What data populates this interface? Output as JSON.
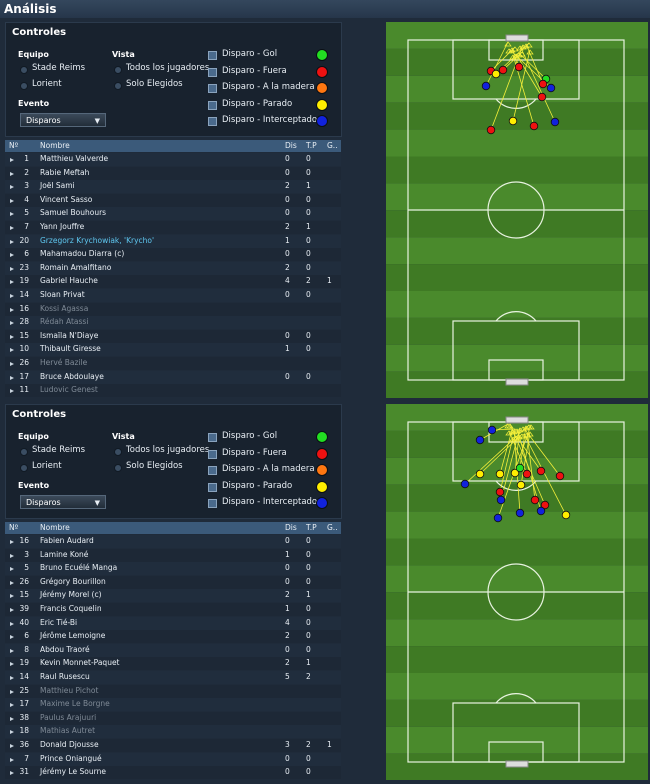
{
  "header": {
    "title": "Análisis"
  },
  "panels": [
    {
      "controls": {
        "title": "Controles",
        "team_label": "Equipo",
        "teams": [
          "Stade Reims",
          "Lorient"
        ],
        "view_label": "Vista",
        "views": [
          "Todos los jugadores",
          "Solo Elegidos"
        ],
        "event_label": "Evento",
        "event": "Disparos",
        "legend": [
          {
            "label": "Disparo - Gol",
            "color": "#22dd22"
          },
          {
            "label": "Disparo - Fuera",
            "color": "#ee1111"
          },
          {
            "label": "Disparo - A la madera",
            "color": "#ff7711"
          },
          {
            "label": "Disparo - Parado",
            "color": "#ffee00"
          },
          {
            "label": "Disparo - Interceptado",
            "color": "#1122dd"
          }
        ]
      },
      "table": {
        "columns": [
          "Nº",
          "Nombre",
          "Dis",
          "T.P",
          "G.."
        ],
        "rows": [
          {
            "num": "1",
            "name": "Matthieu Valverde",
            "dis": "0",
            "tp": "0"
          },
          {
            "num": "2",
            "name": "Rabie Meftah",
            "dis": "0",
            "tp": "0"
          },
          {
            "num": "3",
            "name": "Joël Sami",
            "dis": "2",
            "tp": "1"
          },
          {
            "num": "4",
            "name": "Vincent Sasso",
            "dis": "0",
            "tp": "0"
          },
          {
            "num": "5",
            "name": "Samuel Bouhours",
            "dis": "0",
            "tp": "0"
          },
          {
            "num": "7",
            "name": "Yann Jouffre",
            "dis": "2",
            "tp": "1"
          },
          {
            "num": "20",
            "name": "Grzegorz Krychowiak, 'Krycho'",
            "dis": "1",
            "tp": "0"
          },
          {
            "num": "6",
            "name": "Mahamadou Diarra (c)",
            "dis": "0",
            "tp": "0"
          },
          {
            "num": "23",
            "name": "Romain Amalfitano",
            "dis": "2",
            "tp": "0"
          },
          {
            "num": "19",
            "name": "Gabriel Hauche",
            "dis": "4",
            "tp": "2",
            "g": "1"
          },
          {
            "num": "14",
            "name": "Sloan Privat",
            "dis": "0",
            "tp": "0"
          },
          {
            "num": "16",
            "name": "Kossi Agassa"
          },
          {
            "num": "28",
            "name": "Rédah Atassi"
          },
          {
            "num": "15",
            "name": "Ismaïla N'Diaye",
            "dis": "0",
            "tp": "0"
          },
          {
            "num": "10",
            "name": "Thibault Giresse",
            "dis": "1",
            "tp": "0"
          },
          {
            "num": "26",
            "name": "Hervé Bazile"
          },
          {
            "num": "17",
            "name": "Bruce Abdoulaye",
            "dis": "0",
            "tp": "0"
          },
          {
            "num": "11",
            "name": "Ludovic Genest"
          }
        ]
      }
    },
    {
      "controls": {
        "title": "Controles",
        "team_label": "Equipo",
        "teams": [
          "Stade Reims",
          "Lorient"
        ],
        "view_label": "Vista",
        "views": [
          "Todos los jugadores",
          "Solo Elegidos"
        ],
        "event_label": "Evento",
        "event": "Disparos",
        "legend": [
          {
            "label": "Disparo - Gol",
            "color": "#22dd22"
          },
          {
            "label": "Disparo - Fuera",
            "color": "#ee1111"
          },
          {
            "label": "Disparo - A la madera",
            "color": "#ff7711"
          },
          {
            "label": "Disparo - Parado",
            "color": "#ffee00"
          },
          {
            "label": "Disparo - Interceptado",
            "color": "#1122dd"
          }
        ]
      },
      "table": {
        "columns": [
          "Nº",
          "Nombre",
          "Dis",
          "T.P",
          "G.."
        ],
        "rows": [
          {
            "num": "16",
            "name": "Fabien Audard",
            "dis": "0",
            "tp": "0"
          },
          {
            "num": "3",
            "name": "Lamine Koné",
            "dis": "1",
            "tp": "0"
          },
          {
            "num": "5",
            "name": "Bruno Ecuélé Manga",
            "dis": "0",
            "tp": "0"
          },
          {
            "num": "26",
            "name": "Grégory Bourillon",
            "dis": "0",
            "tp": "0"
          },
          {
            "num": "15",
            "name": "Jérémy Morel (c)",
            "dis": "2",
            "tp": "1"
          },
          {
            "num": "39",
            "name": "Francis Coquelin",
            "dis": "1",
            "tp": "0"
          },
          {
            "num": "40",
            "name": "Eric Tié-Bi",
            "dis": "4",
            "tp": "0"
          },
          {
            "num": "6",
            "name": "Jérôme Lemoigne",
            "dis": "2",
            "tp": "0"
          },
          {
            "num": "8",
            "name": "Abdou Traoré",
            "dis": "0",
            "tp": "0"
          },
          {
            "num": "19",
            "name": "Kevin Monnet-Paquet",
            "dis": "2",
            "tp": "1"
          },
          {
            "num": "14",
            "name": "Raul Rusescu",
            "dis": "5",
            "tp": "2"
          },
          {
            "num": "25",
            "name": "Matthieu Pichot"
          },
          {
            "num": "17",
            "name": "Maxime Le Borgne"
          },
          {
            "num": "38",
            "name": "Paulus Arajuuri"
          },
          {
            "num": "18",
            "name": "Mathias Autret"
          },
          {
            "num": "36",
            "name": "Donald Djousse",
            "dis": "3",
            "tp": "2",
            "g": "1"
          },
          {
            "num": "7",
            "name": "Prince Oniangué",
            "dis": "0",
            "tp": "0"
          },
          {
            "num": "31",
            "name": "Jérémy Le Sourne",
            "dis": "0",
            "tp": "0"
          }
        ]
      }
    }
  ]
}
